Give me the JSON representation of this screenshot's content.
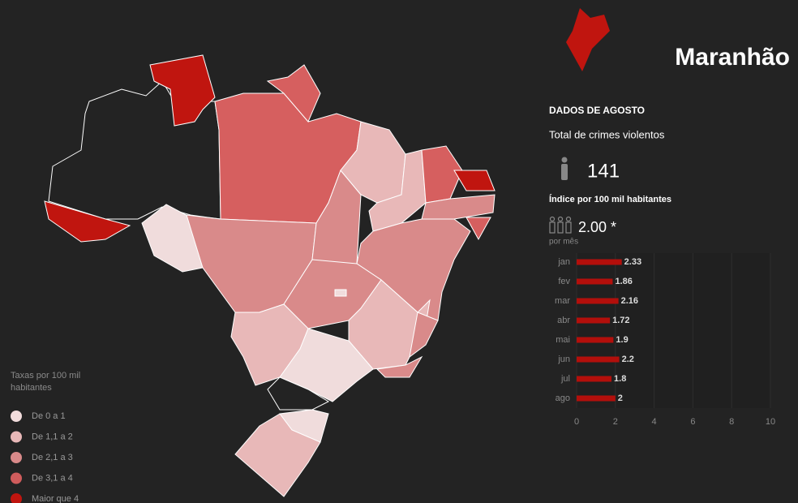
{
  "header": {
    "title": "Maranhão"
  },
  "summary": {
    "heading": "DADOS DE AGOSTO",
    "total_label": "Total de crimes violentos",
    "total": 141,
    "index_label": "Índice por 100 mil habitantes",
    "index": "2.00 *",
    "period": "por mês"
  },
  "legend": {
    "title": "Taxas por 100 mil habitantes",
    "items": [
      {
        "label": "De 0 a 1",
        "color": "#f2dcdc"
      },
      {
        "label": "De 1,1 a 2",
        "color": "#e8b8b8"
      },
      {
        "label": "De 2,1 a 3",
        "color": "#d98a8a"
      },
      {
        "label": "De 3,1 a 4",
        "color": "#cf5c5c"
      },
      {
        "label": "Maior que 4",
        "color": "#c0150f"
      }
    ]
  },
  "chart_data": {
    "type": "bar",
    "orientation": "horizontal",
    "categories": [
      "jan",
      "fev",
      "mar",
      "abr",
      "mai",
      "jun",
      "jul",
      "ago"
    ],
    "values": [
      2.33,
      1.86,
      2.16,
      1.72,
      1.9,
      2.2,
      1.8,
      2
    ],
    "color": "#b30f0b",
    "xlim": [
      0,
      10
    ],
    "xticks": [
      0,
      2,
      4,
      6,
      8,
      10
    ],
    "grid": true
  }
}
